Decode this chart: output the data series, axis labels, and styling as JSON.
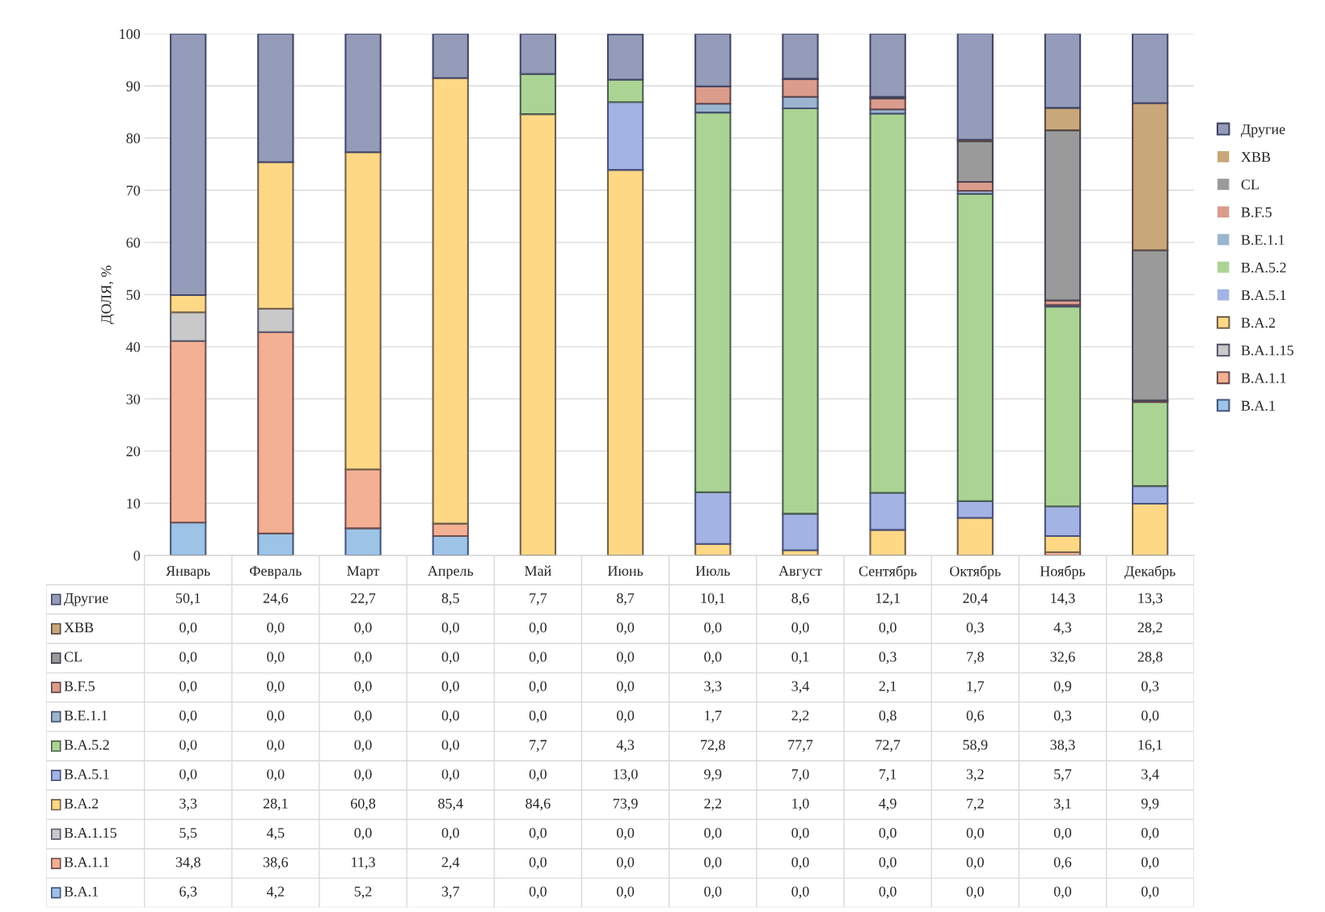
{
  "chart_data": {
    "type": "bar",
    "stacked": true,
    "ylabel": "ДОЛЯ, %",
    "categories": [
      "Январь",
      "Февраль",
      "Март",
      "Апрель",
      "Май",
      "Июнь",
      "Июль",
      "Август",
      "Сентябрь",
      "Октябрь",
      "Ноябрь",
      "Декабрь"
    ],
    "ylim": [
      0,
      100
    ],
    "yticks": [
      0,
      10,
      20,
      30,
      40,
      50,
      60,
      70,
      80,
      90,
      100
    ],
    "grid": "y",
    "legend": "right",
    "series": [
      {
        "name": "B.A.1",
        "color": "#9dc3e6",
        "values": [
          6.3,
          4.2,
          5.2,
          3.7,
          0.0,
          0.0,
          0.0,
          0.0,
          0.0,
          0.0,
          0.0,
          0.0
        ],
        "value_labels": [
          "6,3",
          "4,2",
          "5,2",
          "3,7",
          "0,0",
          "0,0",
          "0,0",
          "0,0",
          "0,0",
          "0,0",
          "0,0",
          "0,0"
        ]
      },
      {
        "name": "B.A.1.1",
        "color": "#f4b093",
        "values": [
          34.8,
          38.6,
          11.3,
          2.4,
          0.0,
          0.0,
          0.0,
          0.0,
          0.0,
          0.0,
          0.6,
          0.0
        ],
        "value_labels": [
          "34,8",
          "38,6",
          "11,3",
          "2,4",
          "0,0",
          "0,0",
          "0,0",
          "0,0",
          "0,0",
          "0,0",
          "0,6",
          "0,0"
        ]
      },
      {
        "name": "B.A.1.15",
        "color": "#c9c9c9",
        "values": [
          5.5,
          4.5,
          0.0,
          0.0,
          0.0,
          0.0,
          0.0,
          0.0,
          0.0,
          0.0,
          0.0,
          0.0
        ],
        "value_labels": [
          "5,5",
          "4,5",
          "0,0",
          "0,0",
          "0,0",
          "0,0",
          "0,0",
          "0,0",
          "0,0",
          "0,0",
          "0,0",
          "0,0"
        ]
      },
      {
        "name": "B.A.2",
        "color": "#ffd886",
        "values": [
          3.3,
          28.1,
          60.8,
          85.4,
          84.6,
          73.9,
          2.2,
          1.0,
          4.9,
          7.2,
          3.1,
          9.9
        ],
        "value_labels": [
          "3,3",
          "28,1",
          "60,8",
          "85,4",
          "84,6",
          "73,9",
          "2,2",
          "1,0",
          "4,9",
          "7,2",
          "3,1",
          "9,9"
        ]
      },
      {
        "name": "B.A.5.1",
        "color": "#a3b3e3",
        "values": [
          0.0,
          0.0,
          0.0,
          0.0,
          0.0,
          13.0,
          9.9,
          7.0,
          7.1,
          3.2,
          5.7,
          3.4
        ],
        "value_labels": [
          "0,0",
          "0,0",
          "0,0",
          "0,0",
          "0,0",
          "13,0",
          "9,9",
          "7,0",
          "7,1",
          "3,2",
          "5,7",
          "3,4"
        ]
      },
      {
        "name": "B.A.5.2",
        "color": "#abd494",
        "values": [
          0.0,
          0.0,
          0.0,
          0.0,
          7.7,
          4.3,
          72.8,
          77.7,
          72.7,
          58.9,
          38.3,
          16.1
        ],
        "value_labels": [
          "0,0",
          "0,0",
          "0,0",
          "0,0",
          "7,7",
          "4,3",
          "72,8",
          "77,7",
          "72,7",
          "58,9",
          "38,3",
          "16,1"
        ]
      },
      {
        "name": "B.E.1.1",
        "color": "#9bb5cf",
        "values": [
          0.0,
          0.0,
          0.0,
          0.0,
          0.0,
          0.0,
          1.7,
          2.2,
          0.8,
          0.6,
          0.3,
          0.0
        ],
        "value_labels": [
          "0,0",
          "0,0",
          "0,0",
          "0,0",
          "0,0",
          "0,0",
          "1,7",
          "2,2",
          "0,8",
          "0,6",
          "0,3",
          "0,0"
        ]
      },
      {
        "name": "B.F.5",
        "color": "#dc9c8c",
        "values": [
          0.0,
          0.0,
          0.0,
          0.0,
          0.0,
          0.0,
          3.3,
          3.4,
          2.1,
          1.7,
          0.9,
          0.3
        ],
        "value_labels": [
          "0,0",
          "0,0",
          "0,0",
          "0,0",
          "0,0",
          "0,0",
          "3,3",
          "3,4",
          "2,1",
          "1,7",
          "0,9",
          "0,3"
        ]
      },
      {
        "name": "CL",
        "color": "#9a9a9a",
        "values": [
          0.0,
          0.0,
          0.0,
          0.0,
          0.0,
          0.0,
          0.0,
          0.1,
          0.3,
          7.8,
          32.6,
          28.8
        ],
        "value_labels": [
          "0,0",
          "0,0",
          "0,0",
          "0,0",
          "0,0",
          "0,0",
          "0,0",
          "0,1",
          "0,3",
          "7,8",
          "32,6",
          "28,8"
        ]
      },
      {
        "name": "XBB",
        "color": "#c8a77a",
        "values": [
          0.0,
          0.0,
          0.0,
          0.0,
          0.0,
          0.0,
          0.0,
          0.0,
          0.0,
          0.3,
          4.3,
          28.2
        ],
        "value_labels": [
          "0,0",
          "0,0",
          "0,0",
          "0,0",
          "0,0",
          "0,0",
          "0,0",
          "0,0",
          "0,0",
          "0,3",
          "4,3",
          "28,2"
        ]
      },
      {
        "name": "Другие",
        "color": "#949cba",
        "values": [
          50.1,
          24.6,
          22.7,
          8.5,
          7.7,
          8.7,
          10.1,
          8.6,
          12.1,
          20.4,
          14.3,
          13.3
        ],
        "value_labels": [
          "50,1",
          "24,6",
          "22,7",
          "8,5",
          "7,7",
          "8,7",
          "10,1",
          "8,6",
          "12,1",
          "20,4",
          "14,3",
          "13,3"
        ]
      }
    ]
  }
}
